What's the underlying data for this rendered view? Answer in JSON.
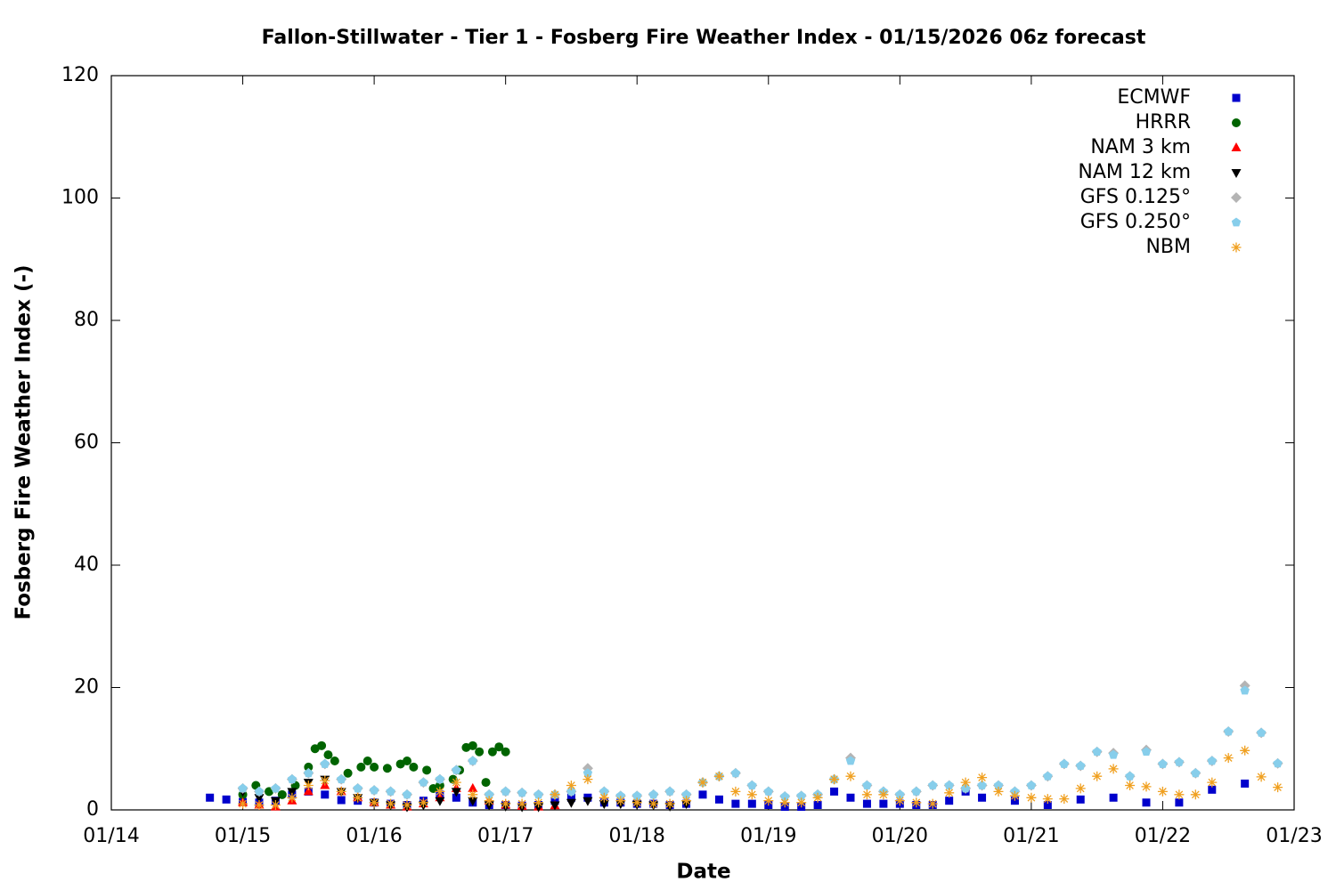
{
  "chart_data": {
    "type": "scatter",
    "title": "Fallon-Stillwater - Tier 1 - Fosberg Fire Weather Index - 01/15/2026 06z forecast",
    "x_label": "Date",
    "y_label": "Fosberg Fire Weather Index (-)",
    "xlim": [
      14,
      23
    ],
    "xticks": [
      {
        "value": 14,
        "label": "01/14"
      },
      {
        "value": 15,
        "label": "01/15"
      },
      {
        "value": 16,
        "label": "01/16"
      },
      {
        "value": 17,
        "label": "01/17"
      },
      {
        "value": 18,
        "label": "01/18"
      },
      {
        "value": 19,
        "label": "01/19"
      },
      {
        "value": 20,
        "label": "01/20"
      },
      {
        "value": 21,
        "label": "01/21"
      },
      {
        "value": 22,
        "label": "01/22"
      },
      {
        "value": 23,
        "label": "01/23"
      }
    ],
    "ylim": [
      0,
      120
    ],
    "yticks": [
      0,
      20,
      40,
      60,
      80,
      100,
      120
    ],
    "grid": false,
    "legend": "upper right",
    "series": [
      {
        "name": "ECMWF",
        "color": "#0000cc",
        "marker": "square",
        "x": [
          14.75,
          14.875,
          15,
          15.125,
          15.25,
          15.375,
          15.5,
          15.625,
          15.75,
          15.875,
          16,
          16.125,
          16.25,
          16.375,
          16.5,
          16.625,
          16.75,
          16.875,
          17,
          17.125,
          17.25,
          17.375,
          17.5,
          17.625,
          17.75,
          17.875,
          18,
          18.125,
          18.25,
          18.375,
          18.5,
          18.625,
          18.75,
          18.875,
          19,
          19.125,
          19.25,
          19.375,
          19.5,
          19.625,
          19.75,
          19.875,
          20,
          20.125,
          20.25,
          20.375,
          20.5,
          20.625,
          20.875,
          21.125,
          21.375,
          21.625,
          21.875,
          22.125,
          22.375,
          22.625
        ],
        "values": [
          2,
          1.7,
          1.3,
          1.2,
          1.5,
          2.5,
          3,
          2.5,
          1.6,
          1.5,
          1.2,
          1,
          0.8,
          1.5,
          2.5,
          2,
          1.2,
          0.8,
          0.8,
          0.7,
          0.8,
          1.5,
          2,
          2,
          1.2,
          1.2,
          1,
          1,
          0.8,
          1,
          2.5,
          1.7,
          1,
          1,
          0.8,
          0.5,
          0.5,
          0.8,
          3,
          2,
          1,
          1,
          1,
          0.8,
          0.8,
          1.5,
          3,
          2,
          1.5,
          0.8,
          1.7,
          2,
          1.2,
          1.2,
          3.3,
          4.3
        ]
      },
      {
        "name": "HRRR",
        "color": "#006400",
        "marker": "circle",
        "x": [
          15,
          15.1,
          15.2,
          15.3,
          15.4,
          15.5,
          15.55,
          15.6,
          15.65,
          15.7,
          15.8,
          15.9,
          15.95,
          16,
          16.1,
          16.2,
          16.25,
          16.3,
          16.4,
          16.45,
          16.5,
          16.6,
          16.65,
          16.7,
          16.75,
          16.8,
          16.85,
          16.9,
          16.95,
          17
        ],
        "values": [
          2.5,
          4,
          3,
          2.5,
          4,
          7,
          10,
          10.5,
          9,
          8,
          6,
          7,
          8,
          7,
          6.8,
          7.5,
          8,
          7,
          6.5,
          3.5,
          4,
          5,
          6.5,
          10.2,
          10.5,
          9.5,
          4.5,
          9.5,
          10.3,
          9.5
        ]
      },
      {
        "name": "NAM 3 km",
        "color": "#ff0000",
        "marker": "triangle-up",
        "x": [
          15,
          15.125,
          15.25,
          15.375,
          15.5,
          15.625,
          15.75,
          15.875,
          16,
          16.125,
          16.25,
          16.375,
          16.5,
          16.625,
          16.75,
          16.875,
          17,
          17.125,
          17.25,
          17.375
        ],
        "values": [
          1.2,
          0.8,
          0.5,
          1.5,
          3,
          4,
          3,
          2,
          1.2,
          0.8,
          0.5,
          1,
          2,
          3.5,
          3.5,
          1.5,
          0.8,
          0.6,
          0.5,
          0.7
        ]
      },
      {
        "name": "NAM 12 km",
        "color": "#000000",
        "marker": "triangle-down",
        "x": [
          15,
          15.125,
          15.25,
          15.375,
          15.5,
          15.625,
          15.75,
          15.875,
          16,
          16.125,
          16.25,
          16.375,
          16.5,
          16.625,
          16.75,
          16.875,
          17,
          17.125,
          17.25,
          17.375,
          17.5,
          17.625,
          17.75,
          17.875,
          18,
          18.125,
          18.25,
          18.375
        ],
        "values": [
          3,
          2,
          1.5,
          3,
          4.5,
          5,
          3,
          2,
          1.2,
          0.8,
          0.5,
          0.8,
          1.5,
          3,
          1.5,
          0.8,
          0.6,
          0.5,
          0.5,
          0.8,
          1.2,
          1.5,
          1,
          1,
          0.9,
          0.8,
          0.6,
          1
        ]
      },
      {
        "name": "GFS 0.125°",
        "color": "#b4b4b4",
        "marker": "diamond",
        "x": [
          15,
          15.125,
          15.25,
          15.375,
          15.5,
          15.625,
          15.75,
          15.875,
          16,
          16.125,
          16.25,
          16.375,
          16.5,
          16.625,
          16.75,
          16.875,
          17,
          17.125,
          17.25,
          17.375,
          17.5,
          17.625,
          17.75,
          17.875,
          18,
          18.125,
          18.25,
          18.375,
          18.5,
          18.625,
          18.75,
          18.875,
          19,
          19.125,
          19.25,
          19.375,
          19.5,
          19.625,
          19.75,
          19.875,
          20,
          20.125,
          20.25,
          20.375,
          20.5,
          20.625,
          20.75,
          20.875,
          21,
          21.125,
          21.25,
          21.375,
          21.5,
          21.625,
          21.75,
          21.875,
          22,
          22.125,
          22.25,
          22.375,
          22.5,
          22.625,
          22.75,
          22.875
        ],
        "values": [
          3.5,
          3,
          3.5,
          5,
          6,
          7.5,
          5,
          3.5,
          3.2,
          3,
          2.5,
          4.5,
          5,
          6.5,
          8,
          2.5,
          3,
          2.8,
          2.5,
          2.5,
          3,
          6.8,
          3,
          2.3,
          2.3,
          2.5,
          3,
          2.5,
          4.5,
          5.5,
          6,
          4,
          3,
          2.2,
          2.3,
          2.5,
          5,
          8.5,
          4,
          3,
          2.5,
          3,
          4,
          4,
          3.5,
          4,
          4,
          3,
          4,
          5.5,
          7.5,
          7.2,
          9.5,
          9.3,
          5.5,
          9.8,
          7.5,
          7.8,
          6,
          8,
          12.8,
          20.3,
          12.6,
          7.6
        ]
      },
      {
        "name": "GFS 0.250°",
        "color": "#87ceeb",
        "marker": "pentagon",
        "x": [
          15,
          15.125,
          15.25,
          15.375,
          15.5,
          15.625,
          15.75,
          15.875,
          16,
          16.125,
          16.25,
          16.375,
          16.5,
          16.625,
          16.75,
          16.875,
          17,
          17.125,
          17.25,
          17.375,
          17.5,
          17.625,
          17.75,
          17.875,
          18,
          18.125,
          18.25,
          18.375,
          18.5,
          18.625,
          18.75,
          18.875,
          19,
          19.125,
          19.25,
          19.375,
          19.5,
          19.625,
          19.75,
          19.875,
          20,
          20.125,
          20.25,
          20.375,
          20.5,
          20.625,
          20.75,
          20.875,
          21,
          21.125,
          21.25,
          21.375,
          21.5,
          21.625,
          21.75,
          21.875,
          22,
          22.125,
          22.25,
          22.375,
          22.5,
          22.625,
          22.75,
          22.875
        ],
        "values": [
          3.5,
          3,
          3.5,
          5,
          6,
          7.5,
          5,
          3.5,
          3.2,
          3,
          2.5,
          4.5,
          5,
          6.5,
          8,
          2.5,
          3,
          2.8,
          2.5,
          2.5,
          3,
          6,
          3,
          2.3,
          2.3,
          2.5,
          3,
          2.5,
          4.5,
          5.5,
          6,
          4,
          3,
          2.2,
          2.3,
          2.5,
          5,
          8,
          4,
          3,
          2.5,
          3,
          4,
          4,
          3.5,
          4,
          4,
          3,
          4,
          5.5,
          7.5,
          7.2,
          9.5,
          9,
          5.5,
          9.5,
          7.5,
          7.8,
          6,
          8,
          12.8,
          19.5,
          12.6,
          7.6
        ]
      },
      {
        "name": "NBM",
        "color": "#f0a020",
        "marker": "asterisk",
        "x": [
          15,
          15.125,
          15.25,
          15.375,
          15.5,
          15.625,
          15.75,
          15.875,
          16,
          16.125,
          16.25,
          16.375,
          16.5,
          16.625,
          16.75,
          16.875,
          17,
          17.125,
          17.25,
          17.375,
          17.5,
          17.625,
          17.75,
          17.875,
          18,
          18.125,
          18.25,
          18.375,
          18.5,
          18.625,
          18.75,
          18.875,
          19,
          19.125,
          19.25,
          19.375,
          19.5,
          19.625,
          19.75,
          19.875,
          20,
          20.125,
          20.25,
          20.375,
          20.5,
          20.625,
          20.75,
          20.875,
          21,
          21.125,
          21.25,
          21.375,
          21.5,
          21.625,
          21.75,
          21.875,
          22,
          22.125,
          22.25,
          22.375,
          22.5,
          22.625,
          22.75,
          22.875
        ],
        "values": [
          1,
          0.8,
          0.8,
          2,
          4,
          4.8,
          3,
          2,
          1.2,
          1,
          0.8,
          1.2,
          3,
          4.5,
          2.5,
          1.5,
          1,
          1,
          1.2,
          2.5,
          4,
          5,
          2,
          1.5,
          1.2,
          1,
          1,
          1.5,
          4.5,
          5.5,
          3,
          2.5,
          1.5,
          1.2,
          1.2,
          2,
          5,
          5.5,
          2.5,
          2.5,
          1.5,
          1.2,
          1,
          2.8,
          4.5,
          5.3,
          3,
          2.3,
          2,
          1.8,
          1.8,
          3.5,
          5.5,
          6.7,
          4,
          3.8,
          3,
          2.5,
          2.5,
          4.5,
          8.5,
          9.7,
          5.4,
          3.7
        ]
      }
    ]
  }
}
